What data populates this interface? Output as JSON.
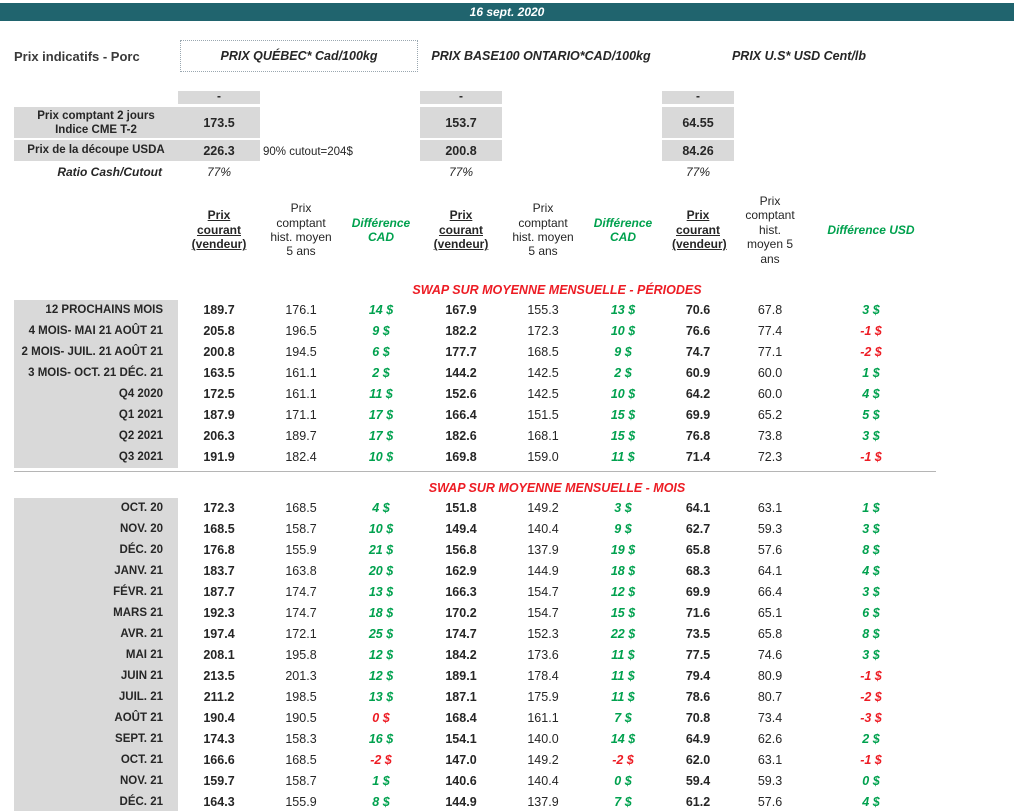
{
  "banner": {
    "date": "16 sept. 2020"
  },
  "title": "Prix indicatifs - Porc",
  "groups": [
    {
      "id": "quebec",
      "title": "PRIX QUÉBEC* Cad/100kg"
    },
    {
      "id": "ontario",
      "title": "PRIX BASE100 ONTARIO*CAD/100kg"
    },
    {
      "id": "us",
      "title": "PRIX U.S* USD Cent/lb"
    }
  ],
  "spot": {
    "dash": "-",
    "cme": {
      "label_lines": [
        "Prix comptant 2 jours",
        "Indice CME T-2"
      ],
      "quebec": "173.5",
      "ontario": "153.7",
      "us": "64.55"
    },
    "cutout": {
      "label": "Prix de la découpe USDA",
      "quebec": "226.3",
      "note": "90% cutout=204$",
      "ontario": "200.8",
      "us": "84.26"
    },
    "ratio": {
      "label": "Ratio Cash/Cutout",
      "quebec": "77%",
      "ontario": "77%",
      "us": "77%"
    }
  },
  "column_headers": {
    "current": "Prix courant (vendeur)",
    "hist_avg": "Prix comptant hist. moyen 5 ans",
    "diff_cad": "Différence CAD",
    "diff_usd": "Différence USD"
  },
  "sections": [
    {
      "title": "SWAP SUR MOYENNE MENSUELLE - PÉRIODES",
      "rows": [
        {
          "label": "12 PROCHAINS MOIS",
          "values": [
            "189.7",
            "176.1",
            "14 $",
            "167.9",
            "155.3",
            "13 $",
            "70.6",
            "67.8",
            "3 $"
          ],
          "neg": [
            0,
            0,
            0
          ]
        },
        {
          "label": "4 MOIS- MAI 21 AOÛT 21",
          "values": [
            "205.8",
            "196.5",
            "9 $",
            "182.2",
            "172.3",
            "10 $",
            "76.6",
            "77.4",
            "-1 $"
          ],
          "neg": [
            0,
            0,
            1
          ]
        },
        {
          "label": "2 MOIS- JUIL. 21 AOÛT 21",
          "values": [
            "200.8",
            "194.5",
            "6 $",
            "177.7",
            "168.5",
            "9 $",
            "74.7",
            "77.1",
            "-2 $"
          ],
          "neg": [
            0,
            0,
            1
          ]
        },
        {
          "label": "3 MOIS- OCT. 21 DÉC. 21",
          "values": [
            "163.5",
            "161.1",
            "2 $",
            "144.2",
            "142.5",
            "2 $",
            "60.9",
            "60.0",
            "1 $"
          ],
          "neg": [
            0,
            0,
            0
          ]
        },
        {
          "label": "Q4 2020",
          "values": [
            "172.5",
            "161.1",
            "11 $",
            "152.6",
            "142.5",
            "10 $",
            "64.2",
            "60.0",
            "4 $"
          ],
          "neg": [
            0,
            0,
            0
          ]
        },
        {
          "label": "Q1 2021",
          "values": [
            "187.9",
            "171.1",
            "17 $",
            "166.4",
            "151.5",
            "15 $",
            "69.9",
            "65.2",
            "5 $"
          ],
          "neg": [
            0,
            0,
            0
          ]
        },
        {
          "label": "Q2 2021",
          "values": [
            "206.3",
            "189.7",
            "17 $",
            "182.6",
            "168.1",
            "15 $",
            "76.8",
            "73.8",
            "3 $"
          ],
          "neg": [
            0,
            0,
            0
          ]
        },
        {
          "label": "Q3 2021",
          "values": [
            "191.9",
            "182.4",
            "10 $",
            "169.8",
            "159.0",
            "11 $",
            "71.4",
            "72.3",
            "-1 $"
          ],
          "neg": [
            0,
            0,
            1
          ]
        }
      ]
    },
    {
      "title": "SWAP SUR MOYENNE MENSUELLE - MOIS",
      "rows": [
        {
          "label": "OCT. 20",
          "values": [
            "172.3",
            "168.5",
            "4 $",
            "151.8",
            "149.2",
            "3 $",
            "64.1",
            "63.1",
            "1 $"
          ],
          "neg": [
            0,
            0,
            0
          ]
        },
        {
          "label": "NOV. 20",
          "values": [
            "168.5",
            "158.7",
            "10 $",
            "149.4",
            "140.4",
            "9 $",
            "62.7",
            "59.3",
            "3 $"
          ],
          "neg": [
            0,
            0,
            0
          ]
        },
        {
          "label": "DÉC. 20",
          "values": [
            "176.8",
            "155.9",
            "21 $",
            "156.8",
            "137.9",
            "19 $",
            "65.8",
            "57.6",
            "8 $"
          ],
          "neg": [
            0,
            0,
            0
          ]
        },
        {
          "label": "JANV. 21",
          "values": [
            "183.7",
            "163.8",
            "20 $",
            "162.9",
            "144.9",
            "18 $",
            "68.3",
            "64.1",
            "4 $"
          ],
          "neg": [
            0,
            0,
            0
          ]
        },
        {
          "label": "FÉVR. 21",
          "values": [
            "187.7",
            "174.7",
            "13 $",
            "166.3",
            "154.7",
            "12 $",
            "69.9",
            "66.4",
            "3 $"
          ],
          "neg": [
            0,
            0,
            0
          ]
        },
        {
          "label": "MARS 21",
          "values": [
            "192.3",
            "174.7",
            "18 $",
            "170.2",
            "154.7",
            "15 $",
            "71.6",
            "65.1",
            "6 $"
          ],
          "neg": [
            0,
            0,
            0
          ]
        },
        {
          "label": "AVR. 21",
          "values": [
            "197.4",
            "172.1",
            "25 $",
            "174.7",
            "152.3",
            "22 $",
            "73.5",
            "65.8",
            "8 $"
          ],
          "neg": [
            0,
            0,
            0
          ]
        },
        {
          "label": "MAI 21",
          "values": [
            "208.1",
            "195.8",
            "12 $",
            "184.2",
            "173.6",
            "11 $",
            "77.5",
            "74.6",
            "3 $"
          ],
          "neg": [
            0,
            0,
            0
          ]
        },
        {
          "label": "JUIN 21",
          "values": [
            "213.5",
            "201.3",
            "12 $",
            "189.1",
            "178.4",
            "11 $",
            "79.4",
            "80.9",
            "-1 $"
          ],
          "neg": [
            0,
            0,
            1
          ]
        },
        {
          "label": "JUIL. 21",
          "values": [
            "211.2",
            "198.5",
            "13 $",
            "187.1",
            "175.9",
            "11 $",
            "78.6",
            "80.7",
            "-2 $"
          ],
          "neg": [
            0,
            0,
            1
          ]
        },
        {
          "label": "AOÛT 21",
          "values": [
            "190.4",
            "190.5",
            "0 $",
            "168.4",
            "161.1",
            "7 $",
            "70.8",
            "73.4",
            "-3 $"
          ],
          "neg": [
            1,
            0,
            1
          ]
        },
        {
          "label": "SEPT. 21",
          "values": [
            "174.3",
            "158.3",
            "16 $",
            "154.1",
            "140.0",
            "14 $",
            "64.9",
            "62.6",
            "2 $"
          ],
          "neg": [
            0,
            0,
            0
          ]
        },
        {
          "label": "OCT. 21",
          "values": [
            "166.6",
            "168.5",
            "-2 $",
            "147.0",
            "149.2",
            "-2 $",
            "62.0",
            "63.1",
            "-1 $"
          ],
          "neg": [
            1,
            1,
            1
          ]
        },
        {
          "label": "NOV. 21",
          "values": [
            "159.7",
            "158.7",
            "1 $",
            "140.6",
            "140.4",
            "0 $",
            "59.4",
            "59.3",
            "0 $"
          ],
          "neg": [
            0,
            0,
            0
          ]
        },
        {
          "label": "DÉC. 21",
          "values": [
            "164.3",
            "155.9",
            "8 $",
            "144.9",
            "137.9",
            "7 $",
            "61.2",
            "57.6",
            "4 $"
          ],
          "neg": [
            0,
            0,
            0
          ]
        }
      ]
    }
  ],
  "colors": {
    "banner_bg": "#20646e",
    "positive_green": "#00a14e",
    "negative_red": "#ed1c24",
    "section_title_red": "#ed1c24",
    "label_gray": "#d9d9d9"
  }
}
